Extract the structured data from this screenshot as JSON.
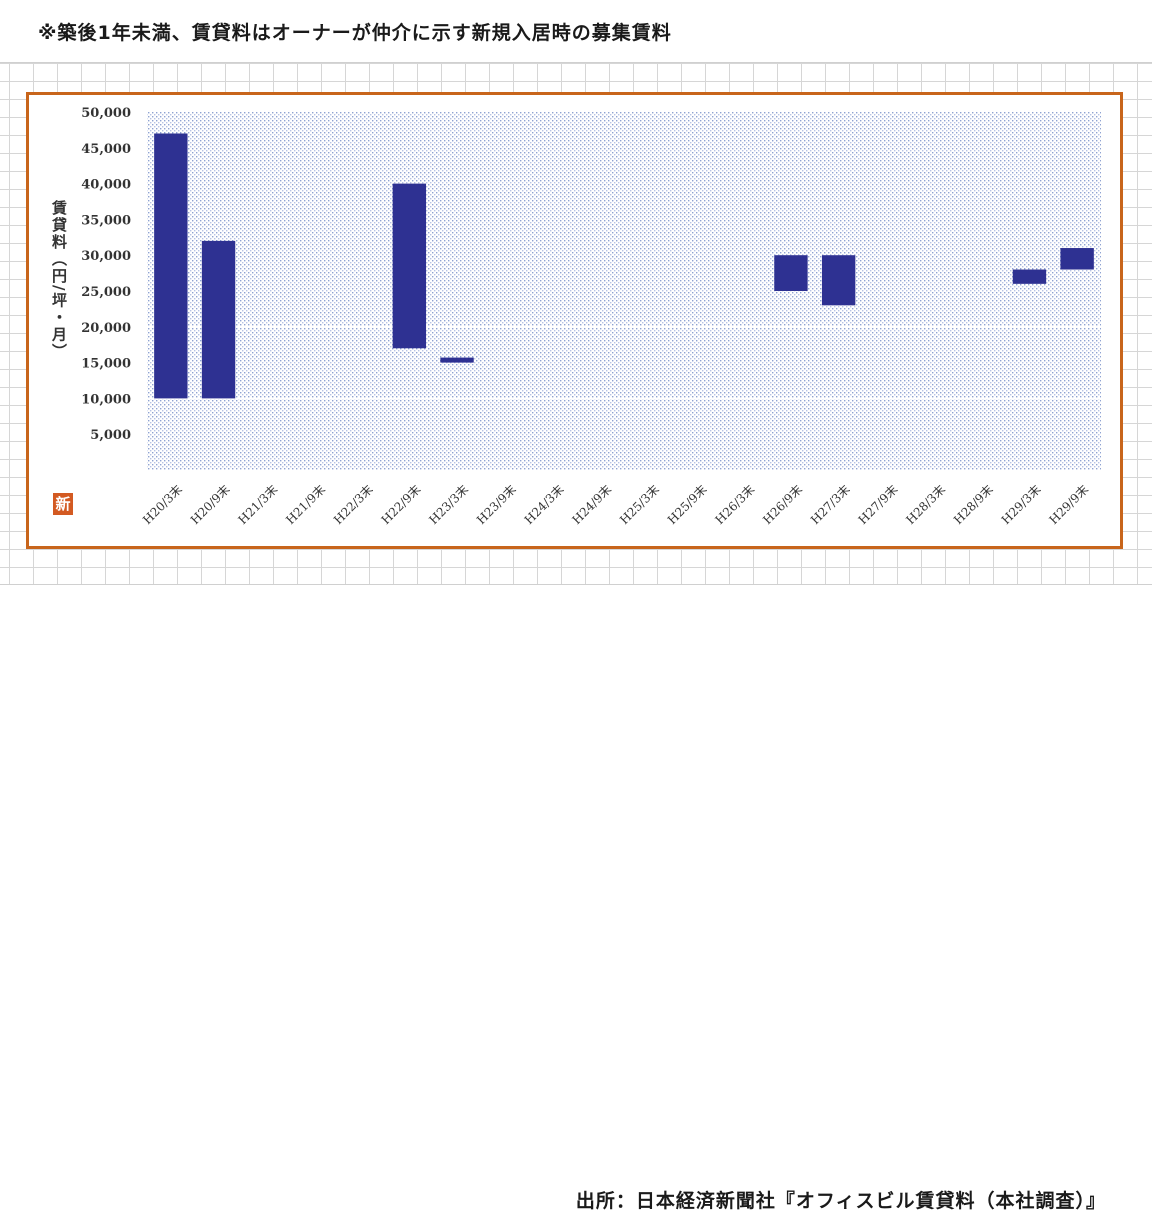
{
  "header": {
    "note": "※築後1年未満、賃貸料はオーナーが仲介に示す新規入居時の募集賃料"
  },
  "footer": {
    "source": "出所：日本経済新聞社『オフィスビル賃貸料（本社調査）』"
  },
  "badge": {
    "label": "新",
    "color": "#d35a22"
  },
  "colors": {
    "bar": "#2e3192",
    "frame": "#c8651b",
    "plot_dots": "#9fb0d8"
  },
  "chart_data": {
    "type": "bar",
    "subtype": "floating-range",
    "title": "",
    "ylabel": "賃貸料（円/坪・月）",
    "xlabel": "",
    "ylim": [
      0,
      50000
    ],
    "yticks": [
      "5,000",
      "10,000",
      "15,000",
      "20,000",
      "25,000",
      "30,000",
      "35,000",
      "40,000",
      "45,000",
      "50,000"
    ],
    "grid": false,
    "legend": "none",
    "categories": [
      "H20/3末",
      "H20/9末",
      "H21/3末",
      "H21/9末",
      "H22/3末",
      "H22/9末",
      "H23/3末",
      "H23/9末",
      "H24/3末",
      "H24/9末",
      "H25/3末",
      "H25/9末",
      "H26/3末",
      "H26/9末",
      "H27/3末",
      "H27/9末",
      "H28/3末",
      "H28/9末",
      "H29/3末",
      "H29/9末"
    ],
    "series": [
      {
        "low": [
          10000,
          10000,
          null,
          null,
          null,
          17000,
          15000,
          null,
          null,
          null,
          null,
          null,
          null,
          25000,
          23000,
          null,
          null,
          null,
          26000,
          28000
        ],
        "high": [
          47000,
          32000,
          null,
          null,
          null,
          40000,
          15700,
          null,
          null,
          null,
          null,
          null,
          null,
          30000,
          30000,
          null,
          null,
          null,
          28000,
          31000
        ]
      }
    ]
  }
}
